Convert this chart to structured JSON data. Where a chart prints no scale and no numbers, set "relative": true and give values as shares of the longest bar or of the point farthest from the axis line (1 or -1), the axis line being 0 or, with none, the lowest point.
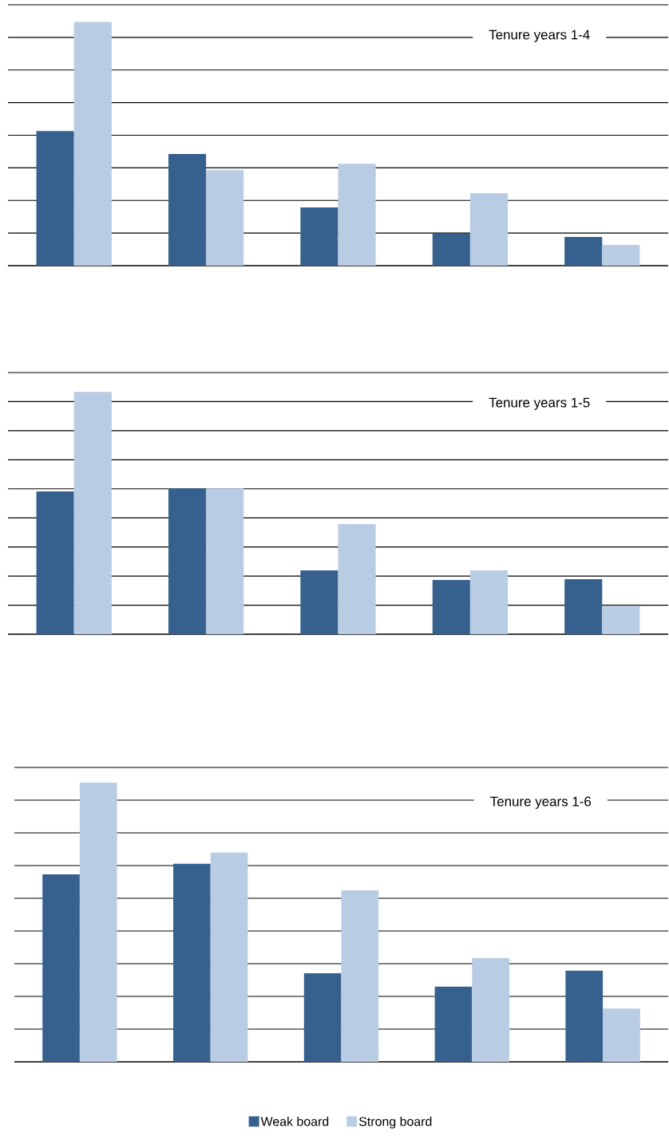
{
  "chart_data": [
    {
      "type": "bar",
      "title": "Tenure years 1-4",
      "categories": [
        null,
        null,
        null,
        null,
        null
      ],
      "relative": true,
      "grid": "y",
      "legend": false,
      "series": [
        {
          "color": "#36618f",
          "values": [
            0.552,
            0.458,
            0.239,
            0.131,
            0.118
          ]
        },
        {
          "color": "#b8cce4",
          "values": [
            1,
            0.392,
            0.418,
            0.297,
            0.085
          ]
        }
      ]
    },
    {
      "type": "bar",
      "title": "Tenure years 1-5",
      "categories": [
        null,
        null,
        null,
        null,
        null
      ],
      "relative": true,
      "grid": "y",
      "legend": false,
      "series": [
        {
          "color": "#36618f",
          "values": [
            0.589,
            0.602,
            0.263,
            0.224,
            0.227
          ]
        },
        {
          "color": "#b8cce4",
          "values": [
            1,
            0.602,
            0.454,
            0.263,
            0.118
          ]
        }
      ]
    },
    {
      "type": "bar",
      "title": "Tenure years 1-6",
      "categories": [
        null,
        null,
        null,
        null,
        null
      ],
      "relative": true,
      "grid": "y",
      "legend": "bottom",
      "series": [
        {
          "name": "Weak board",
          "color": "#36618f",
          "values": [
            0.671,
            0.709,
            0.317,
            0.269,
            0.326
          ]
        },
        {
          "name": "Strong board",
          "color": "#b8cce4",
          "values": [
            1,
            0.749,
            0.614,
            0.371,
            0.191
          ]
        }
      ]
    }
  ]
}
